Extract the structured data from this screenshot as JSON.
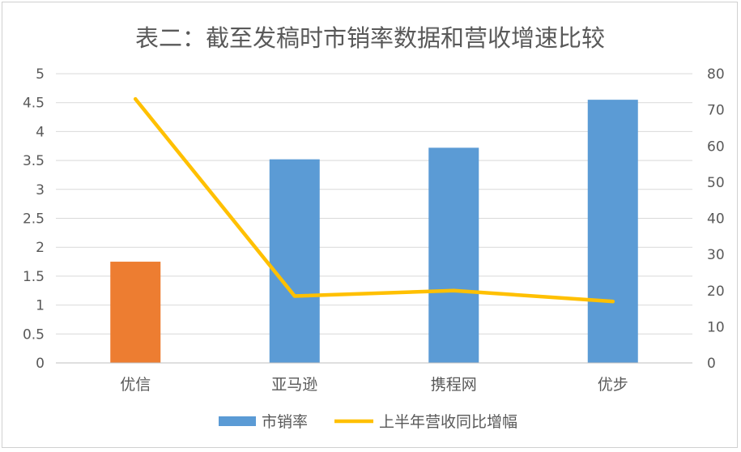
{
  "chart_data": {
    "type": "bar",
    "title": "表二：截至发稿时市销率数据和营收增速比较",
    "categories": [
      "优信",
      "亚马逊",
      "携程网",
      "优步"
    ],
    "series": [
      {
        "name": "市销率",
        "type": "bar",
        "axis": "left",
        "values": [
          1.75,
          3.52,
          3.72,
          4.55
        ],
        "color": "#5B9BD5",
        "point_colors": [
          "#ED7D31",
          "#5B9BD5",
          "#5B9BD5",
          "#5B9BD5"
        ]
      },
      {
        "name": "上半年营收同比增幅",
        "type": "line",
        "axis": "right",
        "values": [
          73,
          18.5,
          20,
          17
        ],
        "color": "#FFC000"
      }
    ],
    "y_left": {
      "min": 0,
      "max": 5,
      "ticks": [
        "0",
        "0.5",
        "1",
        "1.5",
        "2",
        "2.5",
        "3",
        "3.5",
        "4",
        "4.5",
        "5"
      ]
    },
    "y_right": {
      "min": 0,
      "max": 80,
      "ticks": [
        "0",
        "10",
        "20",
        "30",
        "40",
        "50",
        "60",
        "70",
        "80"
      ]
    },
    "grid": true,
    "legend": "bottom"
  }
}
